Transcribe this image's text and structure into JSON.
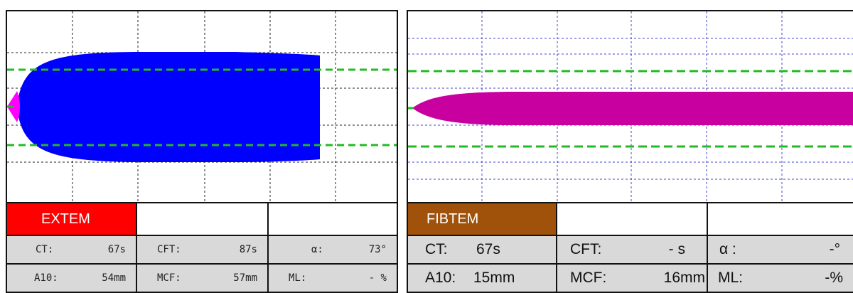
{
  "left_panel": {
    "test_name": "EXTEM",
    "test_color": "#ff0000",
    "trace_color": "#0000ff",
    "onset_color": "#ff00ff",
    "threshold_color": "#22bb22",
    "params": [
      {
        "label": "CT:",
        "value": "67s"
      },
      {
        "label": "CFT:",
        "value": "87s"
      },
      {
        "label": "α:",
        "value": "73°"
      },
      {
        "label": "A10:",
        "value": "54mm"
      },
      {
        "label": "MCF:",
        "value": "57mm"
      },
      {
        "label": "ML:",
        "value": "- %"
      }
    ]
  },
  "right_panel": {
    "test_name": "FIBTEM",
    "test_color": "#a0520a",
    "trace_color": "#c800a0",
    "threshold_color": "#22bb22",
    "params": [
      {
        "label": "CT:",
        "value": "67s"
      },
      {
        "label": "CFT:",
        "value": "- s"
      },
      {
        "label": "α :",
        "value": "-°"
      },
      {
        "label": "A10:",
        "value": "15mm"
      },
      {
        "label": "MCF:",
        "value": "16mm"
      },
      {
        "label": "ML:",
        "value": "-%"
      }
    ]
  }
}
